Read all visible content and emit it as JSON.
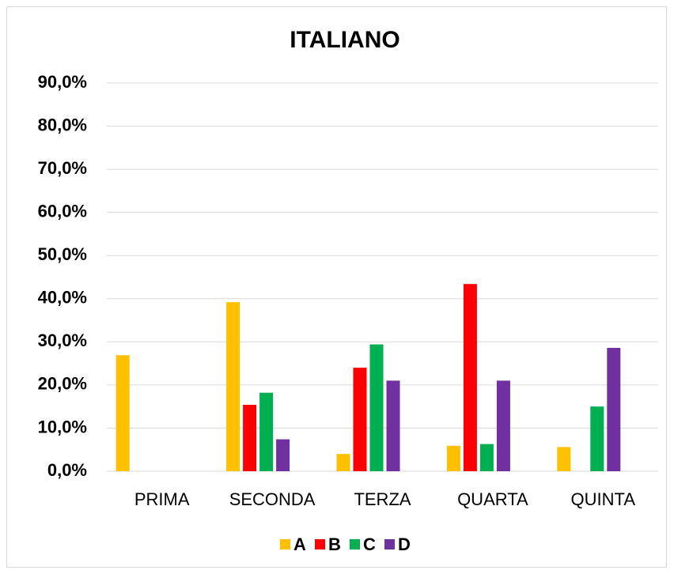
{
  "chart_data": {
    "type": "bar",
    "title": "ITALIANO",
    "categories": [
      "PRIMA",
      "SECONDA",
      "TERZA",
      "QUARTA",
      "QUINTA"
    ],
    "series": [
      {
        "name": "A",
        "color": "#ffc000",
        "values": [
          26.9,
          39.2,
          4.0,
          5.9,
          5.6
        ]
      },
      {
        "name": "B",
        "color": "#ff0000",
        "values": [
          0,
          15.4,
          24.0,
          43.4,
          0
        ]
      },
      {
        "name": "C",
        "color": "#00b050",
        "values": [
          0,
          18.2,
          29.4,
          6.3,
          15.0
        ]
      },
      {
        "name": "D",
        "color": "#7030a0",
        "values": [
          0,
          7.4,
          21.0,
          21.0,
          28.6
        ]
      }
    ],
    "ylim": [
      0,
      90
    ],
    "yticks": [
      {
        "value": 0,
        "label": "0,0%"
      },
      {
        "value": 10,
        "label": "10,0%"
      },
      {
        "value": 20,
        "label": "20,0%"
      },
      {
        "value": 30,
        "label": "30,0%"
      },
      {
        "value": 40,
        "label": "40,0%"
      },
      {
        "value": 50,
        "label": "50,0%"
      },
      {
        "value": 60,
        "label": "60,0%"
      },
      {
        "value": 70,
        "label": "70,0%"
      },
      {
        "value": 80,
        "label": "80,0%"
      },
      {
        "value": 90,
        "label": "90,0%"
      }
    ],
    "grid": true,
    "legend": "bottom"
  }
}
